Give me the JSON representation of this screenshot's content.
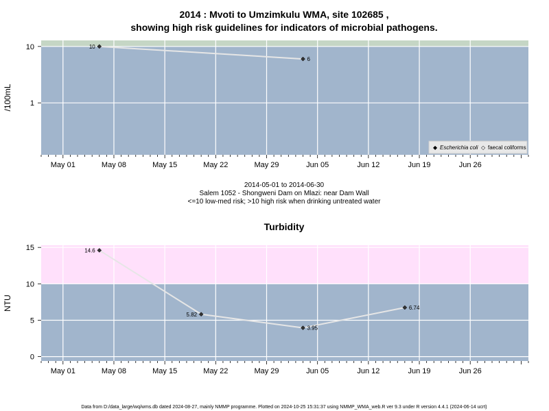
{
  "chart_data": [
    {
      "type": "line",
      "title": "2014 : Mvoti to Umzimkulu WMA, site 102685 ,",
      "subtitle": "showing high risk guidelines for indicators of microbial pathogens.",
      "ylabel": "/100mL",
      "y_scale": "log",
      "yticks": [
        "1",
        "10"
      ],
      "xlim": [
        "2014-04-28",
        "2014-07-04"
      ],
      "x_tick_labels": [
        "May 01",
        "May 08",
        "May 15",
        "May 22",
        "May 29",
        "Jun 05",
        "Jun 12",
        "Jun 19",
        "Jun 26"
      ],
      "high_risk_above": 10,
      "series": [
        {
          "name": "Escherichia coli",
          "x": [
            "2014-05-06",
            "2014-06-03"
          ],
          "y": [
            10,
            6
          ],
          "labels": [
            "10",
            "6"
          ]
        }
      ],
      "legend": {
        "position": "bottom-right",
        "entries": [
          {
            "symbol": "◆",
            "label": "Escherichia coli",
            "italic": true
          },
          {
            "symbol": "◇",
            "label": "faecal coliforms",
            "italic": false
          }
        ]
      },
      "caption_lines": [
        "2014-05-01 to 2014-06-30",
        "Salem 1052 - Shongweni Dam on Mlazi: near Dam Wall",
        "<=10 low-med risk; >10 high risk when drinking untreated water"
      ],
      "colors": {
        "panel": "#a1b5cc",
        "band": "#c5d6c5",
        "line": "#e6e6e6",
        "grid": "#ffffff"
      }
    },
    {
      "type": "line",
      "title": "Turbidity",
      "ylabel": "NTU",
      "ylim": [
        -0.6,
        15.3
      ],
      "yticks": [
        0,
        5,
        10,
        15
      ],
      "xlim": [
        "2014-04-28",
        "2014-07-04"
      ],
      "x_tick_labels": [
        "May 01",
        "May 08",
        "May 15",
        "May 22",
        "May 29",
        "Jun 05",
        "Jun 12",
        "Jun 19",
        "Jun 26"
      ],
      "high_risk_above": 10,
      "series": [
        {
          "x": [
            "2014-05-06",
            "2014-05-20",
            "2014-06-03",
            "2014-06-17"
          ],
          "y": [
            14.6,
            5.82,
            3.95,
            6.74
          ],
          "labels": [
            "14.6",
            "5.82",
            "3.95",
            "6.74"
          ]
        }
      ],
      "colors": {
        "panel": "#a1b5cc",
        "band": "#ffe0fb",
        "line": "#e6e6e6",
        "grid": "#ffffff"
      }
    }
  ],
  "footer": "Data from D:/data_large/wq/wms.db dated 2024-08-27, mainly NMMP programme. Plotted on 2024-10-25 15:31:37 using NMMP_WMA_web.R ver 9.3 under R version 4.4.1 (2024-06-14 ucrt)"
}
